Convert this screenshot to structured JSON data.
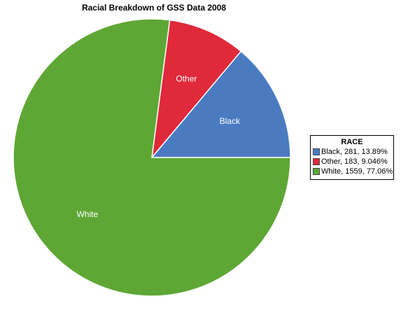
{
  "chart_data": {
    "type": "pie",
    "title": "Racial Breakdown of GSS Data 2008",
    "legend_title": "RACE",
    "legend_position": "right",
    "slices": [
      {
        "label": "Black",
        "value": 281,
        "percent": 13.89,
        "legend": "Black, 281, 13.89%",
        "color": "#4a7bc1"
      },
      {
        "label": "Other",
        "value": 183,
        "percent": 9.046,
        "legend": "Other, 183, 9.046%",
        "color": "#e0293a"
      },
      {
        "label": "White",
        "value": 1559,
        "percent": 77.06,
        "legend": "White, 1559, 77.06%",
        "color": "#5ea735"
      }
    ]
  }
}
